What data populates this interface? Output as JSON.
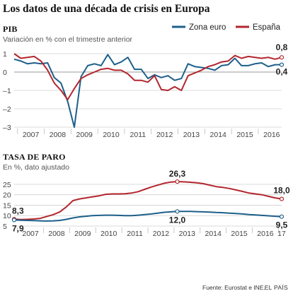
{
  "title": "Los datos de una década de crisis en Europa",
  "source": "Fuente: Eurostat e INE.",
  "brand": "EL PAÍS",
  "colors": {
    "zona_euro": "#1d5f8a",
    "espana": "#b3262e"
  },
  "chart_data": [
    {
      "type": "line",
      "title": "PIB",
      "subtitle": "Variación en % con el trimestre anterior",
      "ylim": [
        -3,
        1
      ],
      "yticks": [
        1,
        0,
        -1,
        -2,
        -3
      ],
      "xticks": [
        "2007",
        "2008",
        "2009",
        "2010",
        "2011",
        "2012",
        "2013",
        "2014",
        "2015",
        "2016"
      ],
      "legend": {
        "placement": "top-right",
        "entries": [
          "Zona euro",
          "España"
        ]
      },
      "grid": true,
      "x": [
        "2006-T4",
        "2007-T1",
        "2007-T2",
        "2007-T3",
        "2007-T4",
        "2008-T1",
        "2008-T2",
        "2008-T3",
        "2008-T4",
        "2009-T1",
        "2009-T2",
        "2009-T3",
        "2009-T4",
        "2010-T1",
        "2010-T2",
        "2010-T3",
        "2010-T4",
        "2011-T1",
        "2011-T2",
        "2011-T3",
        "2011-T4",
        "2012-T1",
        "2012-T2",
        "2012-T3",
        "2012-T4",
        "2013-T1",
        "2013-T2",
        "2013-T3",
        "2013-T4",
        "2014-T1",
        "2014-T2",
        "2014-T3",
        "2014-T4",
        "2015-T1",
        "2015-T2",
        "2015-T3",
        "2015-T4",
        "2016-T1",
        "2016-T2",
        "2016-T3",
        "2016-T4"
      ],
      "series": [
        {
          "name": "Zona euro",
          "color_key": "zona_euro",
          "values": [
            0.7,
            0.6,
            0.45,
            0.5,
            0.45,
            0.5,
            -0.3,
            -0.6,
            -1.6,
            -3.0,
            -0.25,
            0.35,
            0.45,
            0.35,
            0.95,
            0.4,
            0.55,
            0.8,
            0.15,
            0.15,
            -0.35,
            -0.15,
            -0.3,
            -0.2,
            -0.45,
            -0.35,
            0.45,
            0.3,
            0.25,
            0.2,
            0.1,
            0.35,
            0.4,
            0.75,
            0.35,
            0.35,
            0.45,
            0.5,
            0.3,
            0.4,
            0.4
          ],
          "end_label": "0,4"
        },
        {
          "name": "España",
          "color_key": "espana",
          "values": [
            1.0,
            0.75,
            0.8,
            0.85,
            0.6,
            0.1,
            -0.6,
            -1.0,
            -1.5,
            -0.9,
            -0.35,
            -0.15,
            0.0,
            0.15,
            0.2,
            0.1,
            0.1,
            -0.1,
            -0.45,
            -0.45,
            -0.55,
            -0.2,
            -0.95,
            -1.0,
            -0.8,
            -1.0,
            -0.2,
            -0.05,
            0.1,
            0.3,
            0.4,
            0.55,
            0.6,
            0.9,
            0.75,
            0.85,
            0.8,
            0.75,
            0.8,
            0.7,
            0.8
          ],
          "end_label": "0,8"
        }
      ]
    },
    {
      "type": "line",
      "title": "TASA DE PARO",
      "subtitle": "En %, dato ajustado",
      "ylim": [
        5,
        27
      ],
      "yticks": [
        25,
        20,
        15,
        10,
        5
      ],
      "xticks": [
        "2007",
        "2008",
        "2009",
        "2010",
        "2011",
        "2012",
        "2013",
        "2014",
        "2015",
        "2016",
        "17"
      ],
      "grid": true,
      "x": [
        "2006-M12",
        "2007-M3",
        "2007-M6",
        "2007-M9",
        "2007-M12",
        "2008-M3",
        "2008-M6",
        "2008-M9",
        "2008-M12",
        "2009-M3",
        "2009-M6",
        "2009-M9",
        "2009-M12",
        "2010-M3",
        "2010-M6",
        "2010-M9",
        "2010-M12",
        "2011-M3",
        "2011-M6",
        "2011-M9",
        "2011-M12",
        "2012-M3",
        "2012-M6",
        "2012-M9",
        "2012-M12",
        "2013-M3",
        "2013-M6",
        "2013-M9",
        "2013-M12",
        "2014-M3",
        "2014-M6",
        "2014-M9",
        "2014-M12",
        "2015-M3",
        "2015-M6",
        "2015-M9",
        "2015-M12",
        "2016-M3",
        "2016-M6",
        "2016-M9",
        "2016-M12",
        "2017-M3"
      ],
      "series": [
        {
          "name": "España",
          "color_key": "espana",
          "values": [
            8.3,
            8.1,
            8.2,
            8.4,
            8.7,
            9.6,
            10.5,
            11.8,
            14.2,
            17.2,
            18.0,
            18.5,
            19.0,
            19.5,
            20.2,
            20.4,
            20.4,
            20.5,
            20.8,
            21.5,
            22.6,
            23.7,
            24.6,
            25.5,
            26.1,
            26.3,
            26.2,
            26.0,
            25.7,
            25.3,
            24.6,
            23.9,
            23.5,
            23.0,
            22.3,
            21.6,
            20.8,
            20.4,
            20.0,
            19.2,
            18.5,
            18.0
          ],
          "labels": [
            {
              "index": 0,
              "text": "8,3"
            },
            {
              "index": 25,
              "text": "26,3"
            },
            {
              "index": 41,
              "text": "18,0"
            }
          ]
        },
        {
          "name": "Zona euro",
          "color_key": "zona_euro",
          "values": [
            7.9,
            7.8,
            7.7,
            7.6,
            7.5,
            7.4,
            7.5,
            7.7,
            8.2,
            8.9,
            9.4,
            9.7,
            10.0,
            10.1,
            10.2,
            10.2,
            10.1,
            10.0,
            10.0,
            10.2,
            10.5,
            10.8,
            11.2,
            11.6,
            11.8,
            12.0,
            12.0,
            12.0,
            11.9,
            11.8,
            11.7,
            11.5,
            11.4,
            11.2,
            11.0,
            10.8,
            10.5,
            10.3,
            10.1,
            9.9,
            9.7,
            9.5
          ],
          "labels": [
            {
              "index": 0,
              "text": "7,9"
            },
            {
              "index": 25,
              "text": "12,0"
            },
            {
              "index": 41,
              "text": "9,5"
            }
          ]
        }
      ]
    }
  ]
}
